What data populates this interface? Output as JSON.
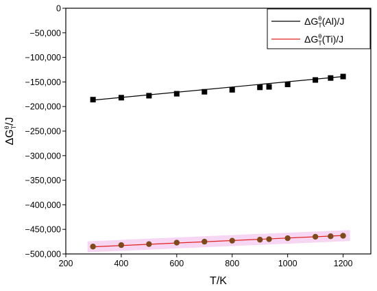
{
  "chart_data": {
    "type": "scatter",
    "title": "",
    "xlabel": "T/K",
    "ylabel": {
      "base": "ΔG",
      "sup": "θ",
      "sub": "T",
      "tail": "/J"
    },
    "xlim": [
      200,
      1300
    ],
    "ylim": [
      -500000,
      0
    ],
    "x_ticks": [
      200,
      400,
      600,
      800,
      1000,
      1200
    ],
    "x_tick_labels": [
      "200",
      "400",
      "600",
      "800",
      "1000",
      "1200"
    ],
    "y_ticks": [
      0,
      -50000,
      -100000,
      -150000,
      -200000,
      -250000,
      -300000,
      -350000,
      -400000,
      -450000,
      -500000
    ],
    "y_tick_labels": [
      "0",
      "−50,000",
      "−100,000",
      "−150,000",
      "−200,000",
      "−250,000",
      "−300,000",
      "−350,000",
      "−400,000",
      "−450,000",
      "−500,000"
    ],
    "grid": false,
    "legend_position": "top-right",
    "x": [
      298,
      400,
      500,
      600,
      700,
      800,
      900,
      933,
      1000,
      1100,
      1155,
      1200
    ],
    "series": [
      {
        "name": "ΔGθT(Al)/J",
        "label": {
          "base": "ΔG",
          "sup": "θ",
          "sub": "T",
          "tail": "(Al)/J"
        },
        "marker": "square",
        "line_color": "#000000",
        "marker_color": "#000000",
        "values": [
          -186000,
          -182000,
          -178000,
          -174000,
          -170000,
          -166000,
          -161000,
          -160000,
          -155000,
          -146000,
          -142000,
          -139000
        ],
        "fit": [
          -187000,
          -139000
        ]
      },
      {
        "name": "ΔGθT(Ti)/J",
        "label": {
          "base": "ΔG",
          "sup": "θ",
          "sub": "T",
          "tail": "(Ti)/J"
        },
        "marker": "circle",
        "line_color": "#e0201c",
        "marker_color": "#7f4a1a",
        "band_color": "#f3c8ee",
        "values": [
          -485000,
          -482000,
          -480000,
          -477000,
          -475000,
          -473000,
          -471000,
          -470000,
          -468000,
          -465000,
          -464000,
          -463000
        ],
        "fit": [
          -485500,
          -462500
        ]
      }
    ]
  }
}
